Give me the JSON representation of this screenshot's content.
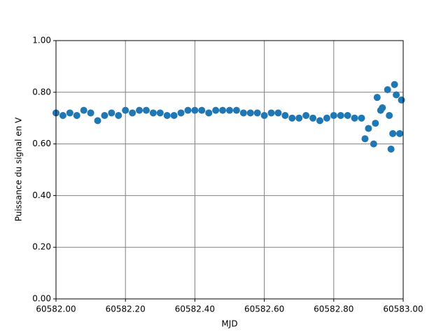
{
  "chart_data": {
    "type": "scatter",
    "x_label": "MJD",
    "y_label": "Puissance du signal en V",
    "color": "#1f77b4",
    "grid": true,
    "x": [
      60582.0,
      60582.02,
      60582.04,
      60582.06,
      60582.08,
      60582.1,
      60582.12,
      60582.14,
      60582.16,
      60582.18,
      60582.2,
      60582.22,
      60582.24,
      60582.26,
      60582.28,
      60582.3,
      60582.32,
      60582.34,
      60582.36,
      60582.38,
      60582.4,
      60582.42,
      60582.44,
      60582.46,
      60582.48,
      60582.5,
      60582.52,
      60582.54,
      60582.56,
      60582.58,
      60582.6,
      60582.62,
      60582.64,
      60582.66,
      60582.68,
      60582.7,
      60582.72,
      60582.74,
      60582.76,
      60582.78,
      60582.8,
      60582.82,
      60582.84,
      60582.86,
      60582.88,
      60582.89,
      60582.9,
      60582.915,
      60582.92,
      60582.925,
      60582.935,
      60582.94,
      60582.955,
      60582.96,
      60582.965,
      60582.97,
      60582.975,
      60582.98,
      60582.99,
      60582.995
    ],
    "values": [
      0.72,
      0.71,
      0.72,
      0.71,
      0.73,
      0.72,
      0.69,
      0.71,
      0.72,
      0.71,
      0.73,
      0.72,
      0.73,
      0.73,
      0.72,
      0.72,
      0.71,
      0.71,
      0.72,
      0.73,
      0.73,
      0.73,
      0.72,
      0.73,
      0.73,
      0.73,
      0.73,
      0.72,
      0.72,
      0.72,
      0.71,
      0.72,
      0.72,
      0.71,
      0.7,
      0.7,
      0.71,
      0.7,
      0.69,
      0.7,
      0.71,
      0.71,
      0.71,
      0.7,
      0.7,
      0.62,
      0.66,
      0.6,
      0.68,
      0.78,
      0.73,
      0.74,
      0.81,
      0.71,
      0.58,
      0.64,
      0.83,
      0.79,
      0.64,
      0.77
    ],
    "xlim": [
      60582.0,
      60583.0
    ],
    "xticks": [
      {
        "value": 60582.0,
        "label": "60582.00"
      },
      {
        "value": 60582.2,
        "label": "60582.20"
      },
      {
        "value": 60582.4,
        "label": "60582.40"
      },
      {
        "value": 60582.6,
        "label": "60582.60"
      },
      {
        "value": 60582.8,
        "label": "60582.80"
      },
      {
        "value": 60583.0,
        "label": "60583.00"
      }
    ],
    "ylim": [
      0,
      1
    ],
    "yticks": [
      {
        "value": 0,
        "label": "0.00"
      },
      {
        "value": 0.2,
        "label": "0.20"
      },
      {
        "value": 0.4,
        "label": "0.40"
      },
      {
        "value": 0.6,
        "label": "0.60"
      },
      {
        "value": 0.8,
        "label": "0.80"
      },
      {
        "value": 1,
        "label": "1.00"
      }
    ]
  }
}
